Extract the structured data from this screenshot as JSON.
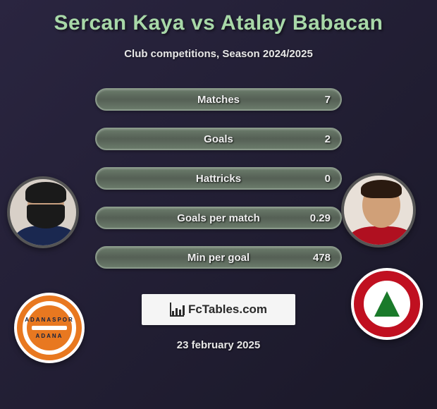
{
  "title": "Sercan Kaya vs Atalay Babacan",
  "subtitle": "Club competitions, Season 2024/2025",
  "stats": [
    {
      "label": "Matches",
      "value": "7"
    },
    {
      "label": "Goals",
      "value": "2"
    },
    {
      "label": "Hattricks",
      "value": "0"
    },
    {
      "label": "Goals per match",
      "value": "0.29"
    },
    {
      "label": "Min per goal",
      "value": "478"
    }
  ],
  "logo_text": "FcTables.com",
  "date": "23 february 2025",
  "colors": {
    "title": "#a8d8a8",
    "background_start": "#2a2540",
    "background_end": "#1a1828",
    "pill_border": "#8a9a8a",
    "pill_bg": "#6a7a6a",
    "text": "#f0f0f0",
    "left_badge_accent": "#e87820",
    "right_badge_accent": "#c01020",
    "right_badge_tree": "#1a7a2a"
  },
  "styling": {
    "title_fontsize": 30,
    "subtitle_fontsize": 15,
    "stat_fontsize": 15,
    "date_fontsize": 15,
    "pill_height": 32,
    "pill_radius": 16,
    "avatar_diameter": 104,
    "badge_diameter": 100
  }
}
